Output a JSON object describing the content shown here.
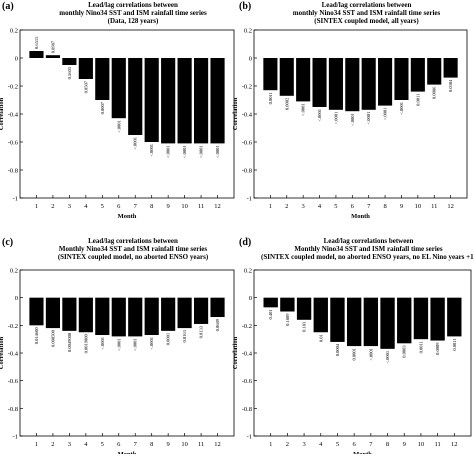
{
  "chart_data": [
    {
      "panel": "(a)",
      "type": "bar",
      "title": [
        "Lead/lag correlations between",
        "monthly Nino34 SST and ISM rainfall time series",
        "(Data, 128 years)"
      ],
      "xlabel": "Month",
      "ylabel": "Correlation",
      "ylim": [
        -1,
        0.2
      ],
      "yticks": [
        "0.2",
        "0",
        "-0.2",
        "-0.4",
        "-0.6",
        "-0.8",
        "-1"
      ],
      "categories": [
        "1",
        "2",
        "3",
        "4",
        "5",
        "6",
        "7",
        "8",
        "9",
        "10",
        "11",
        "12"
      ],
      "values": [
        0.05,
        0.02,
        -0.05,
        -0.15,
        -0.3,
        -0.43,
        -0.55,
        -0.6,
        -0.61,
        -0.61,
        -0.61,
        -0.61
      ],
      "bar_labels": [
        "0.6515",
        "0.8987",
        "0.5603",
        "0.0507",
        "0.0007",
        "<.0001",
        "<.0001",
        "<.0001",
        "<.0001",
        "<.0001",
        "<.0001",
        "<.0001"
      ],
      "grid": false
    },
    {
      "panel": "(b)",
      "type": "bar",
      "title": [
        "Lead/lag correlations between",
        "monthly Nino34 SST and ISM rainfall time series",
        "(SINTEX coupled model, all years)"
      ],
      "xlabel": "Month",
      "ylabel": "Correlation",
      "ylim": [
        -1,
        0.2
      ],
      "yticks": [
        "0.2",
        "0",
        "-0.2",
        "-0.4",
        "-0.6",
        "-0.8",
        "-1"
      ],
      "categories": [
        "1",
        "2",
        "3",
        "4",
        "5",
        "6",
        "7",
        "8",
        "9",
        "10",
        "11",
        "12"
      ],
      "values": [
        -0.23,
        -0.27,
        -0.31,
        -0.35,
        -0.37,
        -0.38,
        -0.37,
        -0.34,
        -0.3,
        -0.24,
        -0.19,
        -0.14
      ],
      "bar_labels": [
        "0.0011",
        "0.0002",
        "<.0001",
        "<.0001",
        "<.0001",
        "<.0001",
        "<.0001",
        "<.0001",
        "<.0001",
        "0.0011",
        "0.0086",
        "0.0304"
      ],
      "grid": false
    },
    {
      "panel": "(c)",
      "type": "bar",
      "title": [
        "Lead/lag correlations between",
        "Monthly Nino34 SST and ISM rainfall time series",
        "(SINTEX coupled model, no aborted ENSO years)"
      ],
      "xlabel": "Month",
      "ylabel": "Correlation",
      "ylim": [
        -1,
        0.2
      ],
      "yticks": [
        "0.2",
        "0",
        "-0.2",
        "-0.4",
        "-0.6",
        "-0.8",
        "-1"
      ],
      "categories": [
        "1",
        "2",
        "3",
        "4",
        "5",
        "6",
        "7",
        "8",
        "9",
        "10",
        "11",
        "12"
      ],
      "values": [
        -0.2,
        -0.22,
        -0.24,
        -0.25,
        -0.27,
        -0.28,
        -0.28,
        -0.27,
        -0.24,
        -0.22,
        -0.19,
        -0.14
      ],
      "bar_labels": [
        "0.014600",
        "0.000500",
        "0.0049000",
        "0.0019000",
        "<.0001",
        "<.0001",
        "<.0001",
        "<.0001",
        "0.0001",
        "0.0163",
        "0.0133",
        "0.0689"
      ],
      "grid": false
    },
    {
      "panel": "(d)",
      "type": "bar",
      "title": [
        "Lead/lag correlations between",
        "Monthly Nino34 SST and ISM rainfall time series",
        "(SINTEX coupled model, no aborted ENSO years, no EL Nino years +1)"
      ],
      "xlabel": "Month",
      "ylabel": "Correlation",
      "ylim": [
        -1,
        0.2
      ],
      "yticks": [
        "0.2",
        "0",
        "-0.2",
        "-0.4",
        "-0.6",
        "-0.8",
        "-1"
      ],
      "categories": [
        "1",
        "2",
        "3",
        "4",
        "5",
        "6",
        "7",
        "8",
        "9",
        "10",
        "11",
        "12"
      ],
      "values": [
        -0.07,
        -0.1,
        -0.16,
        -0.25,
        -0.32,
        -0.35,
        -0.35,
        -0.37,
        -0.33,
        -0.3,
        -0.31,
        -0.28
      ],
      "bar_labels": [
        "0.401",
        "0.1809",
        "0.183",
        "0.01",
        "0.0004",
        "0.0001",
        "<.0001",
        "<.0001",
        "0.0003",
        "0.0011",
        "0.0009",
        "0.0011"
      ],
      "grid": false
    }
  ]
}
